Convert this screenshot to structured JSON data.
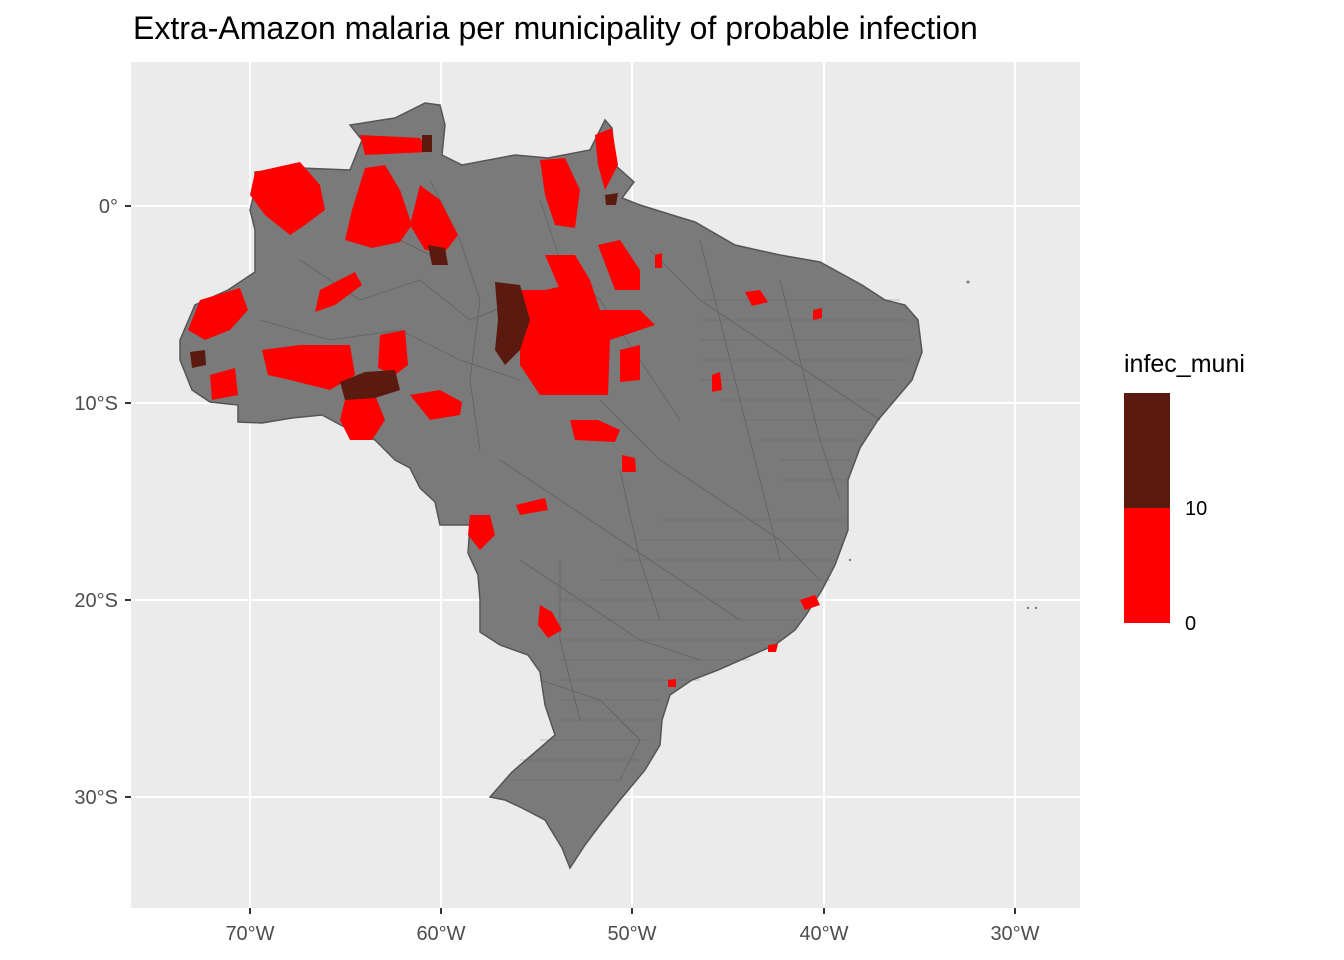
{
  "title": "Extra-Amazon malaria per municipality of probable infection",
  "x_ticks": [
    "70°W",
    "60°W",
    "50°W",
    "40°W",
    "30°W"
  ],
  "y_ticks": [
    "0°",
    "10°S",
    "20°S",
    "30°S"
  ],
  "legend": {
    "title": "infec_muni",
    "labels": [
      "10",
      "0"
    ],
    "colors": {
      "high": "#5a1a0f",
      "low": "#ff0000"
    }
  },
  "colors": {
    "panel_background": "#ebebeb",
    "gridline": "#ffffff",
    "land": "#7a7a7a",
    "border": "#555555",
    "high": "#5a1a0f",
    "low": "#ff0000"
  }
}
